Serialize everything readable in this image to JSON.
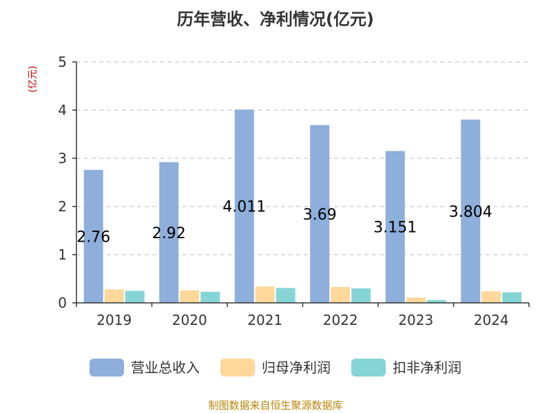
{
  "chart_data": {
    "type": "bar",
    "title": "历年营收、净利情况(亿元)",
    "ylabel": "(亿元)",
    "categories": [
      "2019",
      "2020",
      "2021",
      "2022",
      "2023",
      "2024"
    ],
    "ylim": [
      0,
      5
    ],
    "yticks": [
      0,
      1,
      2,
      3,
      4,
      5
    ],
    "grid": true,
    "legend_position": "bottom",
    "series": [
      {
        "name": "营业总收入",
        "color": "#8eaedb",
        "values": [
          2.76,
          2.92,
          4.011,
          3.69,
          3.151,
          3.804
        ],
        "labels": [
          "2.76",
          "2.92",
          "4.011",
          "3.69",
          "3.151",
          "3.804"
        ]
      },
      {
        "name": "归母净利润",
        "color": "#fdd89a",
        "values": [
          0.28,
          0.26,
          0.34,
          0.33,
          0.11,
          0.24
        ]
      },
      {
        "name": "扣非净利润",
        "color": "#86d5d6",
        "values": [
          0.25,
          0.23,
          0.31,
          0.3,
          0.06,
          0.22
        ]
      }
    ]
  },
  "footer": {
    "source": "制图数据来自恒生聚源数据库"
  }
}
